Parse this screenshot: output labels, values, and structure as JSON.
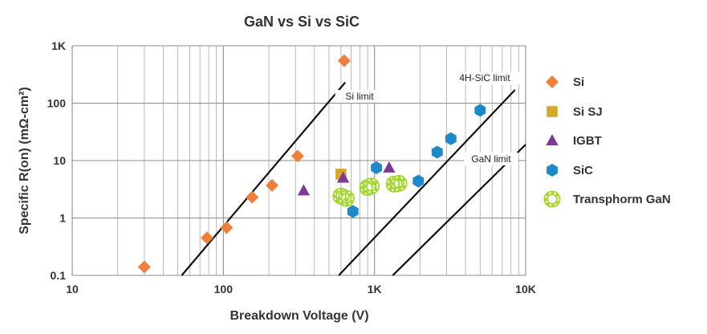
{
  "chart_data": {
    "type": "scatter",
    "title": "GaN vs Si vs SiC",
    "xlabel": "Breakdown Voltage (V)",
    "ylabel": "Specific R(on) (mΩ-cm²)",
    "xscale": "log",
    "yscale": "log",
    "xlim": [
      10,
      10000
    ],
    "ylim": [
      0.1,
      1000
    ],
    "x_ticks": [
      {
        "value": 10,
        "label": "10"
      },
      {
        "value": 100,
        "label": "100"
      },
      {
        "value": 1000,
        "label": "1K"
      },
      {
        "value": 10000,
        "label": "10K"
      }
    ],
    "y_ticks": [
      {
        "value": 0.1,
        "label": "0.1"
      },
      {
        "value": 1,
        "label": "1"
      },
      {
        "value": 10,
        "label": "10"
      },
      {
        "value": 100,
        "label": "100"
      },
      {
        "value": 1000,
        "label": "1K"
      }
    ],
    "grid": true,
    "legend_position": "right",
    "series": [
      {
        "name": "Si",
        "marker": "diamond",
        "color": "#F07F3C",
        "points": [
          [
            30,
            0.14
          ],
          [
            78,
            0.45
          ],
          [
            105,
            0.68
          ],
          [
            155,
            2.3
          ],
          [
            210,
            3.7
          ],
          [
            310,
            12
          ],
          [
            630,
            550
          ]
        ]
      },
      {
        "name": "Si SJ",
        "marker": "square",
        "color": "#D4A82B",
        "points": [
          [
            600,
            5.8
          ]
        ]
      },
      {
        "name": "IGBT",
        "marker": "triangle",
        "color": "#7B3A96",
        "points": [
          [
            340,
            3.0
          ],
          [
            620,
            5.0
          ],
          [
            1250,
            7.5
          ]
        ]
      },
      {
        "name": "SiC",
        "marker": "hexagon",
        "color": "#1E88C8",
        "points": [
          [
            720,
            1.3
          ],
          [
            1030,
            7.5
          ],
          [
            1950,
            4.4
          ],
          [
            2600,
            14
          ],
          [
            3200,
            24
          ],
          [
            5000,
            75
          ]
        ]
      },
      {
        "name": "Transphorm GaN",
        "marker": "ring",
        "color": "#A6D631",
        "points": [
          [
            600,
            2.4
          ],
          [
            650,
            2.2
          ],
          [
            900,
            3.4
          ],
          [
            950,
            3.6
          ],
          [
            1350,
            3.9
          ],
          [
            1450,
            4.0
          ]
        ]
      }
    ],
    "limit_lines": [
      {
        "label": "Si limit",
        "x1": 53,
        "y1": 0.1,
        "x2": 640,
        "y2": 230
      },
      {
        "label": "4H-SiC limit",
        "x1": 580,
        "y1": 0.1,
        "x2": 8500,
        "y2": 170
      },
      {
        "label": "GaN limit",
        "x1": 1320,
        "y1": 0.1,
        "x2": 10000,
        "y2": 19
      }
    ]
  }
}
